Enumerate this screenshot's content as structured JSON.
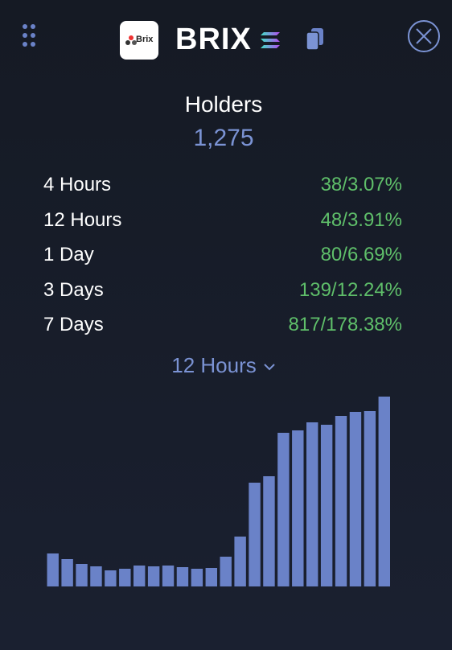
{
  "header": {
    "logo_text": "Brix",
    "title": "BRIX"
  },
  "holders": {
    "label": "Holders",
    "value": "1,275"
  },
  "stats": [
    {
      "label": "4 Hours",
      "value": "38/3.07%"
    },
    {
      "label": "12 Hours",
      "value": "48/3.91%"
    },
    {
      "label": "1 Day",
      "value": "80/6.69%"
    },
    {
      "label": "3 Days",
      "value": "139/12.24%"
    },
    {
      "label": "7 Days",
      "value": "817/178.38%"
    }
  ],
  "period_selector": {
    "label": "12 Hours"
  },
  "chart_data": {
    "type": "bar",
    "color": "#6a82c8",
    "values": [
      41,
      34,
      28,
      25,
      20,
      22,
      26,
      25,
      26,
      24,
      22,
      23,
      37,
      62,
      129,
      137,
      191,
      194,
      204,
      201,
      212,
      217,
      218,
      236
    ]
  }
}
